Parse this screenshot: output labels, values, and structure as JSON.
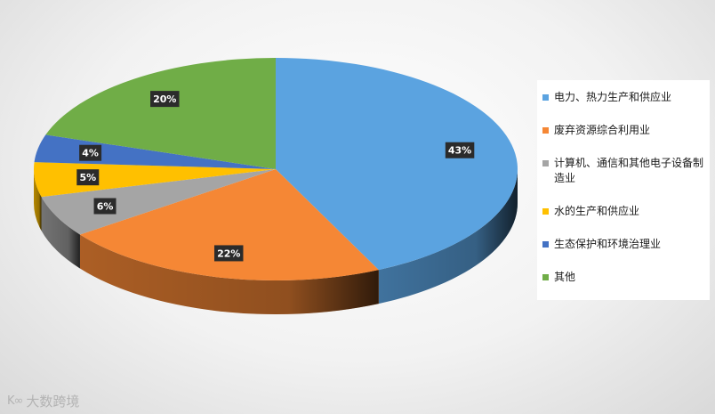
{
  "chart_data": {
    "type": "pie",
    "style": "3d",
    "categories": [
      "电力、热力生产和供应业",
      "废弃资源综合利用业",
      "计算机、通信和其他电子设备制造业",
      "水的生产和供应业",
      "生态保护和环境治理业",
      "其他"
    ],
    "values": [
      43,
      22,
      6,
      5,
      4,
      20
    ],
    "value_labels": [
      "43%",
      "22%",
      "6%",
      "5%",
      "4%",
      "20%"
    ],
    "colors": [
      "#5BA3E0",
      "#F58735",
      "#A5A5A5",
      "#FFC000",
      "#4472C4",
      "#70AD47"
    ],
    "legend_position": "right"
  },
  "watermark": {
    "icon": "ko-logo-icon",
    "text": "大数跨境"
  }
}
